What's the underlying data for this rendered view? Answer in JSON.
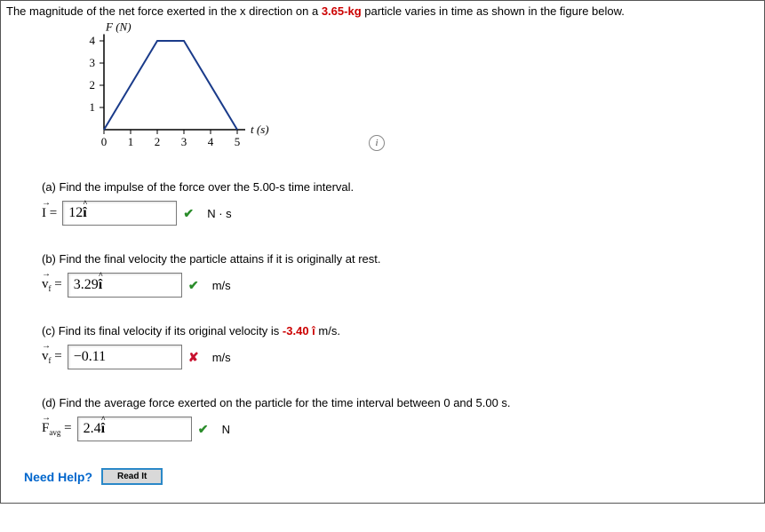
{
  "problem": {
    "text_before": "The magnitude of the net force exerted in the x direction on a ",
    "mass": "3.65-kg",
    "text_after": " particle varies in time as shown in the figure below."
  },
  "chart": {
    "type": "line",
    "y_label": "F (N)",
    "x_label": "t (s)",
    "x_ticks": [
      "0",
      "1",
      "2",
      "3",
      "4",
      "5"
    ],
    "y_ticks": [
      "1",
      "2",
      "3",
      "4"
    ],
    "xlim": [
      0,
      5
    ],
    "ylim": [
      0,
      4
    ],
    "points": [
      [
        0,
        0
      ],
      [
        2,
        4
      ],
      [
        3,
        4
      ],
      [
        5,
        0
      ]
    ],
    "line_color": "#1a3b8a",
    "line_width": 2,
    "axis_color": "#000000",
    "tick_font_size": 13,
    "label_font_style": "italic"
  },
  "parts": {
    "a": {
      "question": "(a) Find the impulse of the force over the 5.00-s time interval.",
      "lhs_symbol": "I",
      "lhs_vec": true,
      "answer": "12",
      "answer_ihat": true,
      "status": "correct",
      "unit": "N · s"
    },
    "b": {
      "question": "(b) Find the final velocity the particle attains if it is originally at rest.",
      "lhs_symbol": "v",
      "lhs_sub": "f",
      "lhs_vec": true,
      "answer": "3.29",
      "answer_ihat": true,
      "status": "correct",
      "unit": "m/s"
    },
    "c": {
      "question_before": "(c) Find its final velocity if its original velocity is ",
      "question_highlight": "-3.40 î",
      "question_after": " m/s.",
      "lhs_symbol": "v",
      "lhs_sub": "f",
      "lhs_vec": true,
      "answer": "−0.11",
      "answer_ihat": false,
      "status": "wrong",
      "unit": "m/s"
    },
    "d": {
      "question": "(d) Find the average force exerted on the particle for the time interval between 0 and 5.00 s.",
      "lhs_symbol": "F",
      "lhs_sub": "avg",
      "lhs_vec": true,
      "answer": "2.4",
      "answer_ihat": true,
      "status": "correct",
      "unit": "N"
    }
  },
  "help": {
    "label": "Need Help?",
    "button": "Read It"
  }
}
